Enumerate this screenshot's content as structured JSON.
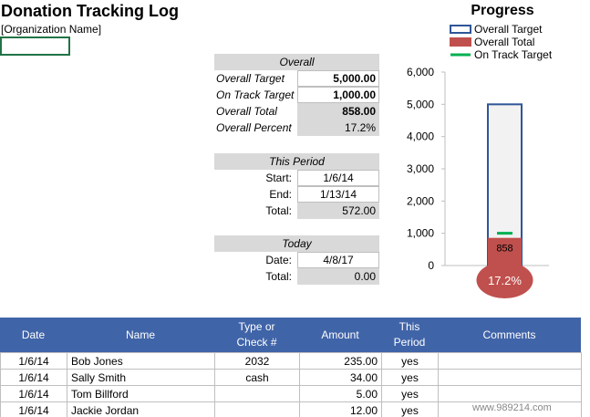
{
  "header": {
    "title": "Donation Tracking Log",
    "organization": "[Organization Name]"
  },
  "overall": {
    "title": "Overall",
    "rows": [
      [
        "Overall Target",
        "5,000.00"
      ],
      [
        "On Track Target",
        "1,000.00"
      ],
      [
        "Overall Total",
        "858.00"
      ],
      [
        "Overall Percent",
        "17.2%"
      ]
    ]
  },
  "period": {
    "title": "This Period",
    "rows": [
      [
        "Start:",
        "1/6/14"
      ],
      [
        "End:",
        "1/13/14"
      ],
      [
        "Total:",
        "572.00"
      ]
    ]
  },
  "today": {
    "title": "Today",
    "rows": [
      [
        "Date:",
        "4/8/17"
      ],
      [
        "Total:",
        "0.00"
      ]
    ]
  },
  "chart_data": {
    "type": "thermometer",
    "title": "Progress",
    "ylim": [
      0,
      6000
    ],
    "yticks": [
      0,
      {
        "value": 1000,
        "label": "1,000"
      },
      {
        "value": 2000,
        "label": "2,000"
      },
      {
        "value": 3000,
        "label": "3,000"
      },
      {
        "value": 4000,
        "label": "4,000"
      },
      {
        "value": 5000,
        "label": "5,000"
      },
      {
        "value": 6000,
        "label": "6,000"
      }
    ],
    "series": [
      {
        "name": "Overall Target",
        "color": "#2f5597",
        "values": [
          5000
        ]
      },
      {
        "name": "Overall Total",
        "color": "#c0504d",
        "values": [
          858
        ]
      },
      {
        "name": "On Track Target",
        "color": "#00b050",
        "values": [
          1000
        ]
      }
    ],
    "bulb": {
      "values": [
        17.2
      ],
      "value_labels": [
        "17.2%"
      ]
    }
  },
  "table": {
    "columns": [
      [
        "Date"
      ],
      [
        "Name"
      ],
      [
        "Type or",
        "Check #"
      ],
      [
        "Amount"
      ],
      [
        "This",
        "Period"
      ],
      [
        "Comments"
      ]
    ],
    "rows": [
      {
        "date": "1/6/14",
        "name": "Bob Jones",
        "type": "2032",
        "amount": "235.00",
        "period": "yes"
      },
      {
        "date": "1/6/14",
        "name": "Sally Smith",
        "type": "cash",
        "amount": "34.00",
        "period": "yes"
      },
      {
        "date": "1/6/14",
        "name": "Tom Billford",
        "amount": "5.00",
        "period": "yes"
      },
      {
        "date": "1/6/14",
        "name": "Jackie Jordan",
        "amount": "12.00",
        "period": "yes"
      }
    ]
  },
  "watermark": "www.989214.com"
}
